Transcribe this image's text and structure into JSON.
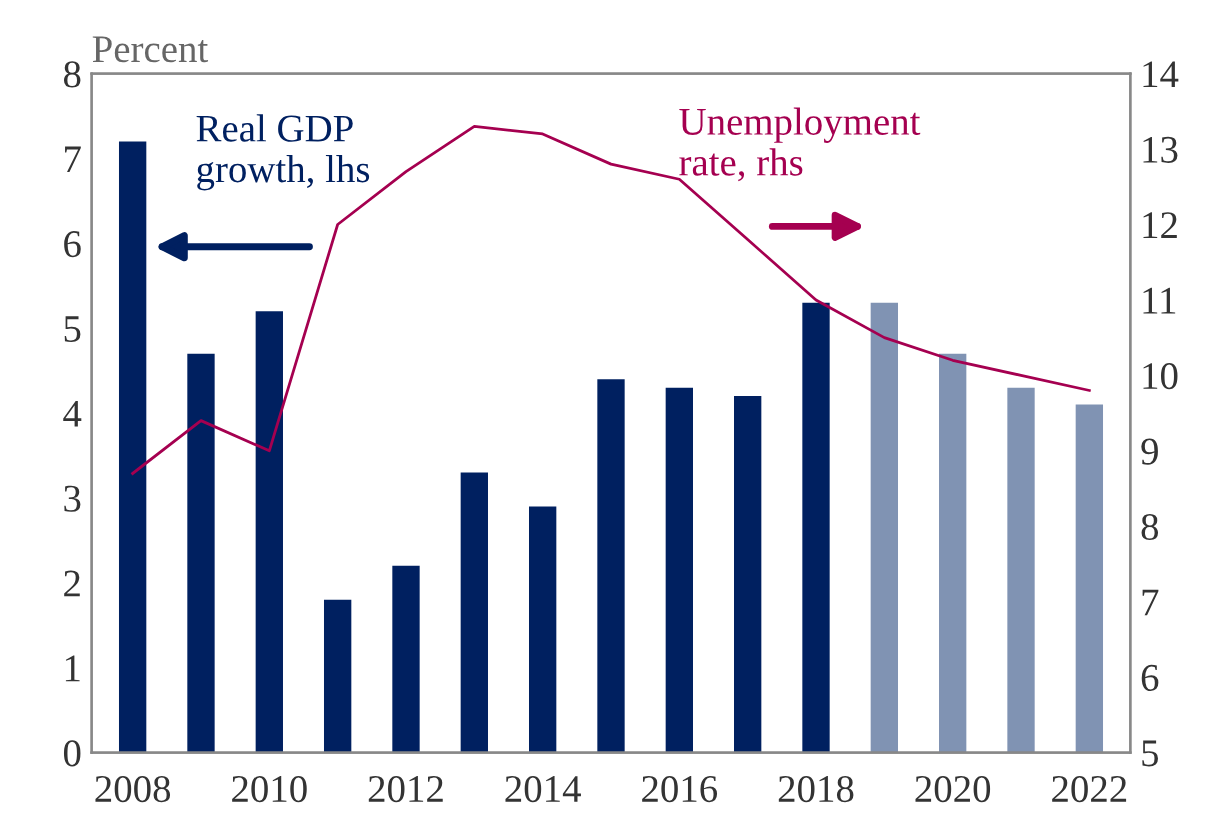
{
  "chart_data": {
    "type": "bar",
    "categories": [
      "2008",
      null,
      "2010",
      null,
      "2012",
      null,
      "2014",
      null,
      "2016",
      null,
      "2018",
      null,
      "2020",
      null,
      "2022"
    ],
    "ylabel": "Percent",
    "series": [
      {
        "colors": [
          "#002060",
          "#002060",
          "#002060",
          "#002060",
          "#002060",
          "#002060",
          "#002060",
          "#002060",
          "#002060",
          "#002060",
          "#002060",
          "#8093b3",
          "#8093b3",
          "#8093b3",
          "#8093b3"
        ],
        "values": [
          7.2,
          4.7,
          5.2,
          1.8,
          2.2,
          3.3,
          2.9,
          4.4,
          4.3,
          4.2,
          5.3,
          5.3,
          4.7,
          4.3,
          4.1
        ]
      },
      {
        "type": "line",
        "axis": "y2",
        "color": "#a50050",
        "values": [
          8.7,
          9.4,
          9.0,
          12.0,
          12.7,
          13.3,
          13.2,
          12.8,
          12.6,
          11.8,
          11.0,
          10.5,
          10.2,
          10.0,
          9.8
        ]
      }
    ],
    "annotations": [
      "Real GDP\ngrowth, lhs",
      "Unemployment\nrate, rhs"
    ],
    "ylim": [
      0,
      8
    ],
    "yticks": [
      0,
      1,
      2,
      3,
      4,
      5,
      6,
      7,
      8
    ],
    "y2lim": [
      5,
      14
    ],
    "y2ticks": [
      5,
      6,
      7,
      8,
      9,
      10,
      11,
      12,
      13,
      14
    ],
    "grid": false,
    "legend": false
  }
}
